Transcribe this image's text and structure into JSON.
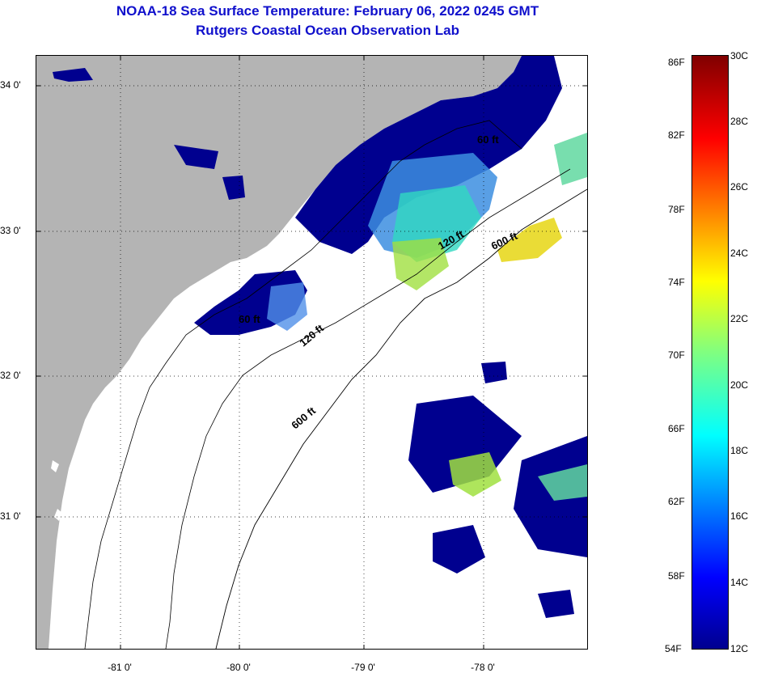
{
  "header": {
    "title": "NOAA-18 Sea Surface Temperature:  February 06, 2022 0245 GMT",
    "subtitle": "Rutgers Coastal Ocean Observation Lab"
  },
  "map": {
    "lat_ticks": [
      "34 0'",
      "33 0'",
      "32 0'",
      "31 0'"
    ],
    "lon_ticks": [
      "-81 0'",
      "-80 0'",
      "-79 0'",
      "-78 0'"
    ],
    "contour_labels": [
      "60 ft",
      "120 ft",
      "600 ft",
      "60 ft",
      "120 ft",
      "600 ft"
    ],
    "colors": {
      "land": "#b4b4b4",
      "cloud_mask": "#ffffff",
      "cold": "#00008f"
    }
  },
  "colorbar": {
    "fahrenheit_labels": [
      "86F",
      "82F",
      "78F",
      "74F",
      "70F",
      "66F",
      "62F",
      "58F",
      "54F"
    ],
    "celsius_labels": [
      "30C",
      "28C",
      "26C",
      "24C",
      "22C",
      "20C",
      "18C",
      "16C",
      "14C",
      "12C"
    ],
    "range_c": [
      12,
      30
    ]
  }
}
